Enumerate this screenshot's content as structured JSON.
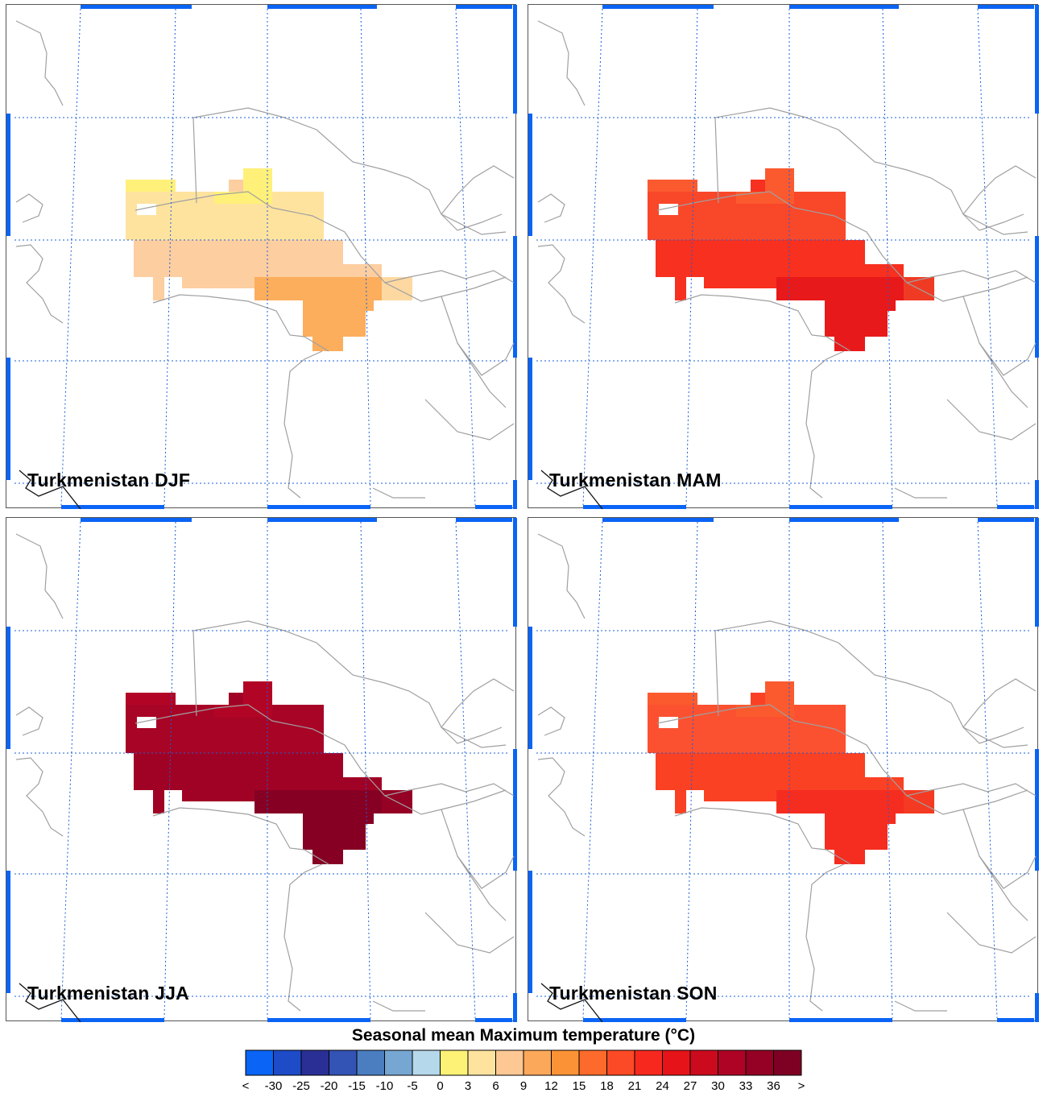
{
  "panels": [
    {
      "title": "Turkmenistan DJF",
      "season": "DJF"
    },
    {
      "title": "Turkmenistan MAM",
      "season": "MAM"
    },
    {
      "title": "Turkmenistan JJA",
      "season": "JJA"
    },
    {
      "title": "Turkmenistan SON",
      "season": "SON"
    }
  ],
  "legend": {
    "title": "Seasonal mean Maximum temperature (°C)",
    "ticks": [
      "<",
      "-30",
      "-25",
      "-20",
      "-15",
      "-10",
      "-5",
      "0",
      "3",
      "6",
      "9",
      "12",
      "15",
      "18",
      "21",
      "24",
      "27",
      "30",
      "33",
      "36",
      ">"
    ],
    "colors": [
      "#0a64f5",
      "#1e4bc8",
      "#2a2f96",
      "#3353b5",
      "#4a7ec0",
      "#76a6d2",
      "#b5d8ea",
      "#fdf276",
      "#fee39f",
      "#fdc894",
      "#fca85a",
      "#fb9235",
      "#fc6a2c",
      "#fb4a25",
      "#f7291f",
      "#e61418",
      "#cc0a1e",
      "#ae0325",
      "#940124",
      "#7e0023"
    ]
  },
  "map_colors": {
    "DJF": {
      "main": "#fdcea0",
      "north": "#fee39f",
      "south": "#fcae5d",
      "east": "#fdd9a1",
      "accent": "#fff07a"
    },
    "MAM": {
      "main": "#f7301f",
      "north": "#f9472a",
      "south": "#e8191a",
      "east": "#f03b24",
      "accent": "#fb5a2f"
    },
    "JJA": {
      "main": "#a00225",
      "north": "#a80426",
      "south": "#860024",
      "east": "#950125",
      "accent": "#b20526"
    },
    "SON": {
      "main": "#fa4124",
      "north": "#fb5130",
      "south": "#f52d20",
      "east": "#f43a22",
      "accent": "#fb5a2f"
    }
  }
}
